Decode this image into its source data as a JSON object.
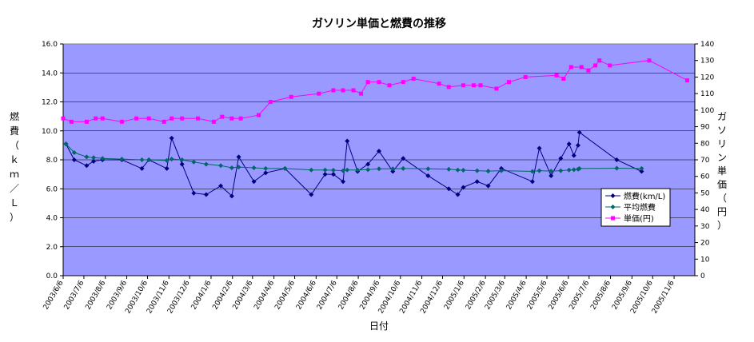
{
  "chart_data": {
    "type": "line",
    "title": "ガソリン単価と燃費の推移",
    "xlabel": "日付",
    "ylabel_left": "燃費（ｋｍ／Ｌ）",
    "ylabel_right": "ガソリン単価（円）",
    "ylim_left": [
      0,
      16
    ],
    "yticks_left": [
      "0.0",
      "2.0",
      "4.0",
      "6.0",
      "8.0",
      "10.0",
      "12.0",
      "14.0",
      "16.0"
    ],
    "ylim_right": [
      0,
      140
    ],
    "yticks_right": [
      "0",
      "10",
      "20",
      "30",
      "40",
      "50",
      "60",
      "70",
      "80",
      "90",
      "100",
      "110",
      "120",
      "130",
      "140"
    ],
    "xlim": [
      "2003-06-06",
      "2005-12-06"
    ],
    "xticks": [
      "2003/6/6",
      "2003/7/6",
      "2003/8/6",
      "2003/9/6",
      "2003/10/6",
      "2003/11/6",
      "2003/12/6",
      "2004/1/6",
      "2004/2/6",
      "2004/3/6",
      "2004/4/6",
      "2004/5/6",
      "2004/6/6",
      "2004/7/6",
      "2004/8/6",
      "2004/9/6",
      "2004/10/6",
      "2004/11/6",
      "2004/12/6",
      "2005/1/6",
      "2005/2/6",
      "2005/3/6",
      "2005/4/6",
      "2005/5/6",
      "2005/6/6",
      "2005/7/6",
      "2005/8/6",
      "2005/9/6",
      "2005/10/6",
      "2005/11/6"
    ],
    "grid": true,
    "legend_position": "right",
    "series": [
      {
        "name": "燃費(km/L)",
        "axis": "left",
        "color": "#000080",
        "marker": "diamond",
        "points": [
          [
            "2003-06-10",
            9.1
          ],
          [
            "2003-06-22",
            8.0
          ],
          [
            "2003-07-10",
            7.6
          ],
          [
            "2003-07-20",
            7.9
          ],
          [
            "2003-08-02",
            8.0
          ],
          [
            "2003-08-30",
            8.0
          ],
          [
            "2003-09-28",
            7.4
          ],
          [
            "2003-10-08",
            8.0
          ],
          [
            "2003-11-03",
            7.4
          ],
          [
            "2003-11-10",
            9.5
          ],
          [
            "2003-11-25",
            7.7
          ],
          [
            "2003-12-12",
            5.7
          ],
          [
            "2003-12-30",
            5.6
          ],
          [
            "2004-01-20",
            6.2
          ],
          [
            "2004-02-05",
            5.5
          ],
          [
            "2004-02-15",
            8.2
          ],
          [
            "2004-03-08",
            6.5
          ],
          [
            "2004-03-25",
            7.1
          ],
          [
            "2004-04-22",
            7.4
          ],
          [
            "2004-05-30",
            5.6
          ],
          [
            "2004-06-19",
            7.0
          ],
          [
            "2004-07-01",
            7.0
          ],
          [
            "2004-07-15",
            6.5
          ],
          [
            "2004-07-21",
            9.3
          ],
          [
            "2004-08-05",
            7.2
          ],
          [
            "2004-08-20",
            7.7
          ],
          [
            "2004-09-05",
            8.6
          ],
          [
            "2004-09-25",
            7.2
          ],
          [
            "2004-10-10",
            8.1
          ],
          [
            "2004-11-15",
            6.9
          ],
          [
            "2004-12-15",
            6.0
          ],
          [
            "2004-12-28",
            5.6
          ],
          [
            "2005-01-05",
            6.1
          ],
          [
            "2005-01-25",
            6.5
          ],
          [
            "2005-02-10",
            6.2
          ],
          [
            "2005-03-01",
            7.4
          ],
          [
            "2005-04-15",
            6.5
          ],
          [
            "2005-04-25",
            8.8
          ],
          [
            "2005-05-12",
            6.9
          ],
          [
            "2005-05-26",
            8.1
          ],
          [
            "2005-06-07",
            9.1
          ],
          [
            "2005-06-14",
            8.3
          ],
          [
            "2005-06-20",
            9.0
          ],
          [
            "2005-06-22",
            9.9
          ],
          [
            "2005-08-15",
            8.0
          ],
          [
            "2005-09-20",
            7.2
          ]
        ]
      },
      {
        "name": "平均燃費",
        "axis": "left",
        "color": "#006666",
        "marker": "diamond",
        "points": [
          [
            "2003-06-10",
            9.1
          ],
          [
            "2003-06-22",
            8.5
          ],
          [
            "2003-07-10",
            8.2
          ],
          [
            "2003-07-20",
            8.15
          ],
          [
            "2003-08-02",
            8.1
          ],
          [
            "2003-08-30",
            8.05
          ],
          [
            "2003-09-28",
            8.0
          ],
          [
            "2003-10-08",
            8.0
          ],
          [
            "2003-11-03",
            7.95
          ],
          [
            "2003-11-10",
            8.05
          ],
          [
            "2003-11-25",
            8.0
          ],
          [
            "2003-12-12",
            7.85
          ],
          [
            "2003-12-30",
            7.7
          ],
          [
            "2004-01-20",
            7.6
          ],
          [
            "2004-02-05",
            7.45
          ],
          [
            "2004-02-15",
            7.5
          ],
          [
            "2004-03-08",
            7.45
          ],
          [
            "2004-03-25",
            7.4
          ],
          [
            "2004-04-22",
            7.4
          ],
          [
            "2004-05-30",
            7.3
          ],
          [
            "2004-06-19",
            7.3
          ],
          [
            "2004-07-01",
            7.28
          ],
          [
            "2004-07-15",
            7.25
          ],
          [
            "2004-07-21",
            7.3
          ],
          [
            "2004-08-05",
            7.3
          ],
          [
            "2004-08-20",
            7.32
          ],
          [
            "2004-09-05",
            7.38
          ],
          [
            "2004-09-25",
            7.38
          ],
          [
            "2004-10-10",
            7.4
          ],
          [
            "2004-11-15",
            7.38
          ],
          [
            "2004-12-15",
            7.35
          ],
          [
            "2004-12-28",
            7.3
          ],
          [
            "2005-01-05",
            7.28
          ],
          [
            "2005-01-25",
            7.25
          ],
          [
            "2005-02-10",
            7.22
          ],
          [
            "2005-03-01",
            7.25
          ],
          [
            "2005-04-15",
            7.2
          ],
          [
            "2005-04-25",
            7.25
          ],
          [
            "2005-05-12",
            7.22
          ],
          [
            "2005-05-26",
            7.25
          ],
          [
            "2005-06-07",
            7.3
          ],
          [
            "2005-06-14",
            7.32
          ],
          [
            "2005-06-20",
            7.35
          ],
          [
            "2005-06-22",
            7.4
          ],
          [
            "2005-08-15",
            7.42
          ],
          [
            "2005-09-20",
            7.4
          ]
        ]
      },
      {
        "name": "単価(円)",
        "axis": "right",
        "color": "#FF00FF",
        "marker": "square",
        "points": [
          [
            "2003-06-06",
            95
          ],
          [
            "2003-06-18",
            93
          ],
          [
            "2003-07-10",
            93
          ],
          [
            "2003-07-23",
            95
          ],
          [
            "2003-08-02",
            95
          ],
          [
            "2003-08-30",
            93
          ],
          [
            "2003-09-20",
            95
          ],
          [
            "2003-10-08",
            95
          ],
          [
            "2003-10-30",
            93
          ],
          [
            "2003-11-10",
            95
          ],
          [
            "2003-11-25",
            95
          ],
          [
            "2003-12-18",
            95
          ],
          [
            "2004-01-10",
            93
          ],
          [
            "2004-01-22",
            96
          ],
          [
            "2004-02-05",
            95
          ],
          [
            "2004-02-18",
            95
          ],
          [
            "2004-03-15",
            97
          ],
          [
            "2004-04-01",
            105
          ],
          [
            "2004-05-01",
            108
          ],
          [
            "2004-06-10",
            110
          ],
          [
            "2004-07-01",
            112
          ],
          [
            "2004-07-15",
            112
          ],
          [
            "2004-07-30",
            112
          ],
          [
            "2004-08-10",
            110
          ],
          [
            "2004-08-20",
            117
          ],
          [
            "2004-09-05",
            117
          ],
          [
            "2004-09-20",
            115
          ],
          [
            "2004-10-10",
            117
          ],
          [
            "2004-10-25",
            119
          ],
          [
            "2004-12-01",
            116
          ],
          [
            "2004-12-15",
            114
          ],
          [
            "2005-01-05",
            115
          ],
          [
            "2005-01-20",
            115
          ],
          [
            "2005-01-30",
            115
          ],
          [
            "2005-02-22",
            113
          ],
          [
            "2005-03-12",
            117
          ],
          [
            "2005-04-05",
            120
          ],
          [
            "2005-05-20",
            121
          ],
          [
            "2005-05-30",
            119
          ],
          [
            "2005-06-10",
            126
          ],
          [
            "2005-06-25",
            126
          ],
          [
            "2005-07-05",
            124
          ],
          [
            "2005-07-15",
            127
          ],
          [
            "2005-07-21",
            130
          ],
          [
            "2005-08-05",
            127
          ],
          [
            "2005-10-01",
            130
          ],
          [
            "2005-11-25",
            118
          ]
        ]
      }
    ]
  }
}
